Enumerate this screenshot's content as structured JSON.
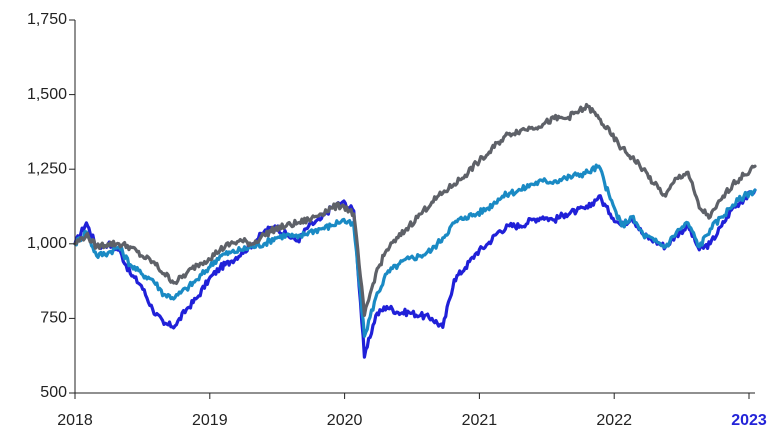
{
  "chart_data": {
    "type": "line",
    "title": "",
    "xlabel": "",
    "ylabel": "",
    "xlim": [
      "2018-01-01",
      "2023-01-31"
    ],
    "ylim": [
      500,
      1750
    ],
    "grid": false,
    "legend": "none",
    "y_ticks": [
      "500",
      "750",
      "1,000",
      "1,250",
      "1,500",
      "1,750"
    ],
    "x_ticks": [
      {
        "label": "2018",
        "highlight": false
      },
      {
        "label": "2019",
        "highlight": false
      },
      {
        "label": "2020",
        "highlight": false
      },
      {
        "label": "2021",
        "highlight": false
      },
      {
        "label": "2022",
        "highlight": false
      },
      {
        "label": "2023",
        "highlight": true
      }
    ],
    "x": [
      "2018-01-01",
      "2018-02-01",
      "2018-03-01",
      "2018-04-01",
      "2018-05-01",
      "2018-06-01",
      "2018-07-01",
      "2018-08-01",
      "2018-09-01",
      "2018-10-01",
      "2018-11-01",
      "2018-12-01",
      "2019-01-01",
      "2019-02-01",
      "2019-03-01",
      "2019-04-01",
      "2019-05-01",
      "2019-06-01",
      "2019-07-01",
      "2019-08-01",
      "2019-09-01",
      "2019-10-01",
      "2019-11-01",
      "2019-12-01",
      "2020-01-01",
      "2020-02-01",
      "2020-03-01",
      "2020-04-01",
      "2020-05-01",
      "2020-06-01",
      "2020-07-01",
      "2020-08-01",
      "2020-09-01",
      "2020-10-01",
      "2020-11-01",
      "2020-12-01",
      "2021-01-01",
      "2021-02-01",
      "2021-03-01",
      "2021-04-01",
      "2021-05-01",
      "2021-06-01",
      "2021-07-01",
      "2021-08-01",
      "2021-09-01",
      "2021-10-01",
      "2021-11-01",
      "2021-12-01",
      "2022-01-01",
      "2022-02-01",
      "2022-03-01",
      "2022-04-01",
      "2022-05-01",
      "2022-06-01",
      "2022-07-01",
      "2022-08-01",
      "2022-09-01",
      "2022-10-01",
      "2022-11-01",
      "2022-12-01",
      "2023-01-01",
      "2023-01-31"
    ],
    "series": [
      {
        "color": "#2020d8",
        "values": [
          1000,
          1070,
          990,
          1000,
          980,
          900,
          860,
          780,
          730,
          725,
          780,
          820,
          880,
          920,
          940,
          970,
          1000,
          1040,
          1060,
          1030,
          1010,
          1060,
          1080,
          1120,
          1140,
          1110,
          620,
          760,
          790,
          770,
          770,
          760,
          750,
          720,
          880,
          920,
          970,
          1000,
          1040,
          1060,
          1060,
          1080,
          1090,
          1080,
          1100,
          1110,
          1120,
          1160,
          1100,
          1060,
          1090,
          1030,
          1010,
          990,
          1030,
          1060,
          980,
          1000,
          1060,
          1120,
          1150,
          1180
        ]
      },
      {
        "color": "#1a8ac4",
        "values": [
          1000,
          1040,
          960,
          970,
          990,
          930,
          900,
          880,
          830,
          820,
          850,
          880,
          920,
          960,
          970,
          980,
          990,
          1000,
          1020,
          1030,
          1020,
          1040,
          1050,
          1060,
          1080,
          1060,
          690,
          820,
          900,
          930,
          950,
          960,
          980,
          1020,
          1070,
          1090,
          1100,
          1120,
          1150,
          1170,
          1180,
          1200,
          1210,
          1210,
          1220,
          1230,
          1240,
          1260,
          1150,
          1060,
          1090,
          1030,
          1010,
          990,
          1040,
          1070,
          990,
          1050,
          1090,
          1130,
          1160,
          1180
        ]
      },
      {
        "color": "#5e6168",
        "values": [
          1000,
          1030,
          990,
          1000,
          1000,
          990,
          960,
          940,
          900,
          870,
          900,
          930,
          950,
          980,
          1000,
          1010,
          1000,
          1030,
          1050,
          1060,
          1070,
          1080,
          1100,
          1120,
          1130,
          1100,
          760,
          900,
          980,
          1020,
          1060,
          1100,
          1140,
          1170,
          1200,
          1230,
          1270,
          1300,
          1340,
          1370,
          1380,
          1390,
          1400,
          1420,
          1420,
          1440,
          1460,
          1420,
          1370,
          1320,
          1290,
          1250,
          1200,
          1160,
          1220,
          1240,
          1120,
          1090,
          1150,
          1200,
          1230,
          1260
        ]
      }
    ]
  }
}
